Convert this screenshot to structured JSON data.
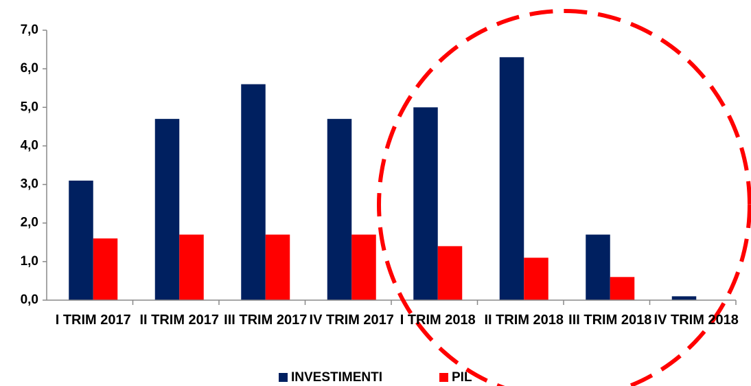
{
  "chart_data": {
    "type": "bar",
    "categories": [
      "I TRIM 2017",
      "II TRIM 2017",
      "III TRIM 2017",
      "IV TRIM 2017",
      "I TRIM 2018",
      "II TRIM 2018",
      "III TRIM 2018",
      "IV TRIM 2018"
    ],
    "series": [
      {
        "name": "INVESTIMENTI",
        "color": "#002060",
        "values": [
          3.1,
          4.7,
          5.6,
          4.7,
          5.0,
          6.3,
          1.7,
          0.1
        ]
      },
      {
        "name": "PIL",
        "color": "#ff0000",
        "values": [
          1.6,
          1.7,
          1.7,
          1.7,
          1.4,
          1.1,
          0.6,
          0
        ]
      }
    ],
    "ylim": [
      0,
      7
    ],
    "yticks": [
      {
        "value": 0,
        "label": "0,0"
      },
      {
        "value": 1,
        "label": "1,0"
      },
      {
        "value": 2,
        "label": "2,0"
      },
      {
        "value": 3,
        "label": "3,0"
      },
      {
        "value": 4,
        "label": "4,0"
      },
      {
        "value": 5,
        "label": "5,0"
      },
      {
        "value": 6,
        "label": "6,0"
      },
      {
        "value": 7,
        "label": "7,0"
      }
    ],
    "legend": "bottom"
  }
}
